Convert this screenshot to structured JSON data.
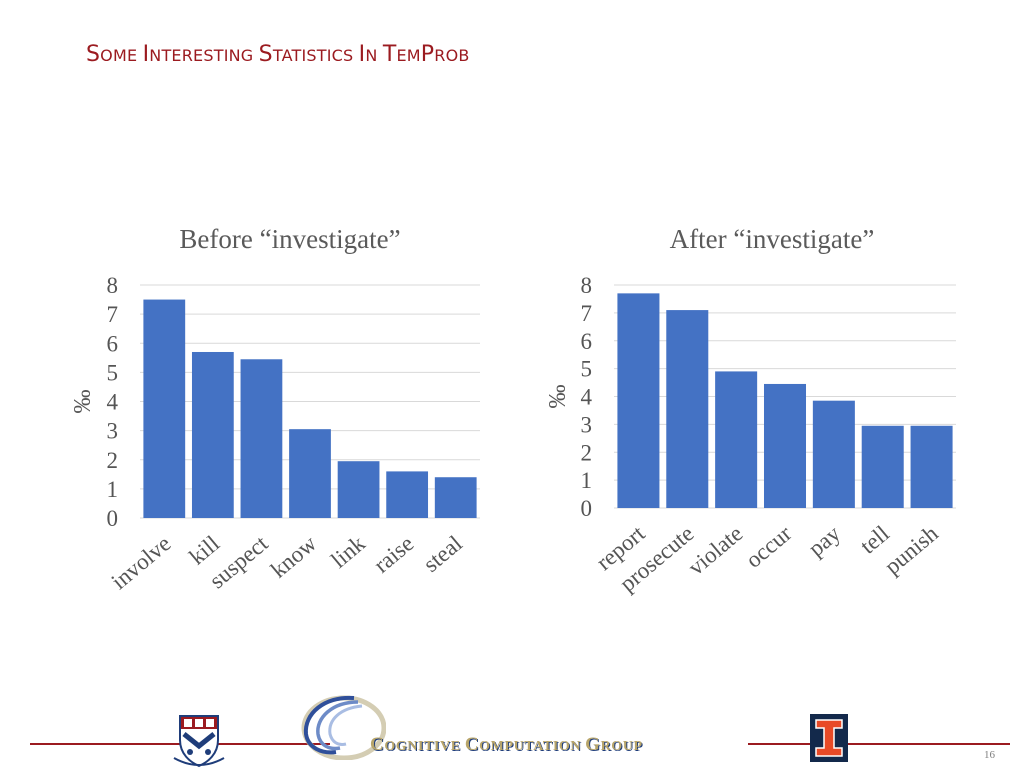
{
  "slide": {
    "title_parts": [
      {
        "cap": "S",
        "rest": "OME "
      },
      {
        "cap": "I",
        "rest": "NTERESTING "
      },
      {
        "cap": "S",
        "rest": "TATISTICS "
      },
      {
        "cap": "I",
        "rest": "N "
      },
      {
        "cap": "T",
        "rest": "EM"
      },
      {
        "cap": "P",
        "rest": "ROB"
      }
    ],
    "page_number": "16"
  },
  "footer": {
    "group_name_parts": [
      {
        "cap": "C",
        "rest": "OGNITIVE "
      },
      {
        "cap": "C",
        "rest": "OMPUTATION "
      },
      {
        "cap": "G",
        "rest": "ROUP"
      }
    ],
    "logos": [
      "penn-shield-logo",
      "cognitive-computation-group-logo",
      "illinois-block-i-logo"
    ]
  },
  "colors": {
    "title": "#9b1b20",
    "bar": "#4472c4",
    "grid": "#d9d9d9",
    "footer_line": "#9b1b20",
    "group_name": "#b8a56a"
  },
  "chart_data": [
    {
      "type": "bar",
      "title": "Before “investigate”",
      "ylabel": "‰",
      "ylim": [
        0,
        8
      ],
      "yticks": [
        "0",
        "1",
        "2",
        "3",
        "4",
        "5",
        "6",
        "7",
        "8"
      ],
      "categories": [
        "involve",
        "kill",
        "suspect",
        "know",
        "link",
        "raise",
        "steal"
      ],
      "values": [
        7.5,
        5.7,
        5.45,
        3.05,
        1.95,
        1.6,
        1.4
      ],
      "grid": true,
      "legend": "none"
    },
    {
      "type": "bar",
      "title": "After “investigate”",
      "ylabel": "‰",
      "ylim": [
        0,
        8
      ],
      "yticks": [
        "0",
        "1",
        "2",
        "3",
        "4",
        "5",
        "6",
        "7",
        "8"
      ],
      "categories": [
        "report",
        "prosecute",
        "violate",
        "occur",
        "pay",
        "tell",
        "punish"
      ],
      "values": [
        7.7,
        7.1,
        4.9,
        4.45,
        3.85,
        2.95,
        2.95
      ],
      "grid": true,
      "legend": "none"
    }
  ]
}
